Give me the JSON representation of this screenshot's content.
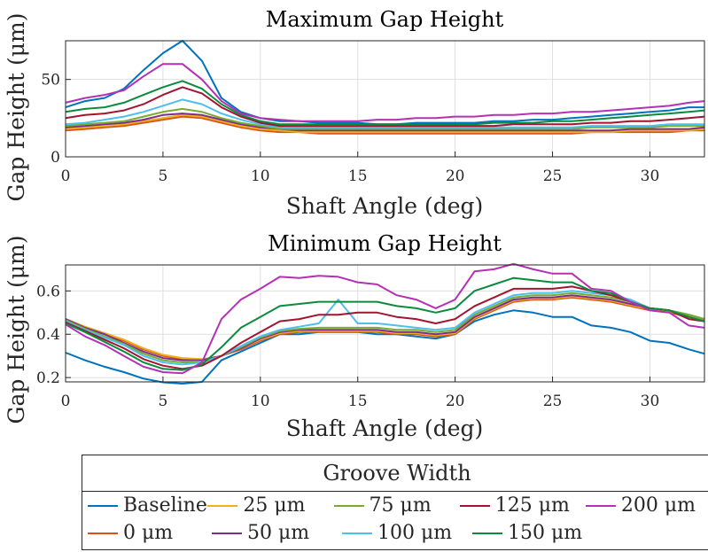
{
  "legend": {
    "title": "Groove Width",
    "rows": [
      [
        {
          "label": "Baseline",
          "color": "#0072BD"
        },
        {
          "label": "25 μm",
          "color": "#EDB120"
        },
        {
          "label": "75 μm",
          "color": "#77AC30"
        },
        {
          "label": "125 μm",
          "color": "#A2142F"
        },
        {
          "label": "200 μm",
          "color": "#B530B5"
        }
      ],
      [
        {
          "label": "0 μm",
          "color": "#D95319"
        },
        {
          "label": "50 μm",
          "color": "#7E2F8E"
        },
        {
          "label": "100 μm",
          "color": "#4DBEEE"
        },
        {
          "label": "150 μm",
          "color": "#0B8B3C"
        }
      ]
    ]
  },
  "chart_data": [
    {
      "type": "line",
      "title": "Maximum Gap Height",
      "xlabel": "Shaft Angle (deg)",
      "ylabel": "Gap Height (μm)",
      "xlim": [
        0,
        32.8
      ],
      "ylim": [
        0,
        75
      ],
      "xticks": [
        0,
        5,
        10,
        15,
        20,
        25,
        30
      ],
      "yticks": [
        0,
        50
      ],
      "grid": true,
      "x": [
        0,
        1,
        2,
        3,
        4,
        5,
        6,
        7,
        8,
        9,
        10,
        11,
        12,
        13,
        14,
        15,
        16,
        17,
        18,
        19,
        20,
        21,
        22,
        23,
        24,
        25,
        26,
        27,
        28,
        29,
        30,
        31,
        32,
        32.8
      ],
      "series": [
        {
          "name": "Baseline",
          "color": "#0072BD",
          "values": [
            32,
            36,
            38,
            44,
            56,
            67,
            75,
            62,
            38,
            29,
            25,
            23,
            23,
            22,
            22,
            22,
            21,
            21,
            22,
            22,
            22,
            22,
            23,
            23,
            24,
            24,
            25,
            26,
            27,
            28,
            29,
            30,
            32,
            32
          ]
        },
        {
          "name": "0 μm",
          "color": "#D95319",
          "values": [
            17,
            18,
            19,
            20,
            22,
            24,
            26,
            25,
            22,
            19,
            17,
            16,
            16,
            15,
            15,
            15,
            15,
            15,
            15,
            15,
            15,
            15,
            15,
            15,
            15,
            15,
            15,
            16,
            16,
            16,
            16,
            16,
            17,
            17
          ]
        },
        {
          "name": "25 μm",
          "color": "#EDB120",
          "values": [
            18,
            19,
            20,
            21,
            23,
            25,
            27,
            26,
            23,
            20,
            18,
            17,
            16,
            16,
            16,
            16,
            16,
            16,
            16,
            16,
            16,
            16,
            16,
            16,
            16,
            16,
            16,
            16,
            16,
            17,
            17,
            17,
            17,
            18
          ]
        },
        {
          "name": "50 μm",
          "color": "#7E2F8E",
          "values": [
            19,
            20,
            21,
            22,
            24,
            27,
            28,
            27,
            24,
            21,
            19,
            18,
            17,
            17,
            17,
            17,
            17,
            17,
            17,
            17,
            17,
            17,
            17,
            17,
            17,
            17,
            17,
            17,
            17,
            18,
            18,
            18,
            18,
            19
          ]
        },
        {
          "name": "75 μm",
          "color": "#77AC30",
          "values": [
            20,
            21,
            22,
            23,
            26,
            29,
            31,
            29,
            25,
            22,
            20,
            18,
            18,
            18,
            18,
            18,
            18,
            18,
            18,
            18,
            18,
            18,
            18,
            18,
            18,
            18,
            18,
            19,
            19,
            19,
            19,
            20,
            20,
            20
          ]
        },
        {
          "name": "100 μm",
          "color": "#4DBEEE",
          "values": [
            21,
            22,
            24,
            26,
            29,
            33,
            37,
            34,
            28,
            24,
            21,
            19,
            19,
            19,
            19,
            19,
            19,
            19,
            19,
            19,
            19,
            19,
            19,
            19,
            19,
            19,
            19,
            20,
            20,
            20,
            20,
            21,
            21,
            21
          ]
        },
        {
          "name": "125 μm",
          "color": "#A2142F",
          "values": [
            25,
            27,
            28,
            30,
            34,
            40,
            45,
            41,
            32,
            26,
            22,
            20,
            20,
            20,
            20,
            20,
            20,
            20,
            20,
            20,
            20,
            20,
            20,
            21,
            21,
            21,
            21,
            22,
            22,
            23,
            23,
            24,
            25,
            26
          ]
        },
        {
          "name": "150 μm",
          "color": "#0B8B3C",
          "values": [
            29,
            31,
            32,
            35,
            40,
            45,
            49,
            44,
            34,
            27,
            23,
            21,
            21,
            21,
            21,
            21,
            21,
            21,
            21,
            21,
            21,
            21,
            22,
            22,
            22,
            23,
            23,
            24,
            25,
            26,
            27,
            28,
            29,
            30
          ]
        },
        {
          "name": "200 μm",
          "color": "#B530B5",
          "values": [
            35,
            38,
            40,
            43,
            52,
            60,
            60,
            50,
            36,
            28,
            25,
            24,
            23,
            23,
            23,
            23,
            24,
            24,
            25,
            25,
            26,
            26,
            27,
            27,
            28,
            28,
            29,
            29,
            30,
            31,
            32,
            33,
            35,
            36
          ]
        }
      ]
    },
    {
      "type": "line",
      "title": "Minimum Gap Height",
      "xlabel": "Shaft Angle (deg)",
      "ylabel": "Gap Height (μm)",
      "xlim": [
        0,
        32.8
      ],
      "ylim": [
        0.18,
        0.72
      ],
      "xticks": [
        0,
        5,
        10,
        15,
        20,
        25,
        30
      ],
      "yticks": [
        0.2,
        0.4,
        0.6
      ],
      "ytick_labels": [
        "0.2",
        "0.4",
        "0.6"
      ],
      "grid": true,
      "x": [
        0,
        1,
        2,
        3,
        4,
        5,
        6,
        7,
        8,
        9,
        10,
        11,
        12,
        13,
        14,
        15,
        16,
        17,
        18,
        19,
        20,
        21,
        22,
        23,
        24,
        25,
        26,
        27,
        28,
        29,
        30,
        31,
        32,
        32.8
      ],
      "series": [
        {
          "name": "Baseline",
          "color": "#0072BD",
          "values": [
            0.315,
            0.28,
            0.25,
            0.225,
            0.195,
            0.178,
            0.172,
            0.18,
            0.28,
            0.32,
            0.36,
            0.4,
            0.4,
            0.41,
            0.41,
            0.41,
            0.4,
            0.4,
            0.39,
            0.38,
            0.4,
            0.46,
            0.49,
            0.51,
            0.5,
            0.48,
            0.48,
            0.44,
            0.43,
            0.41,
            0.37,
            0.36,
            0.33,
            0.31
          ]
        },
        {
          "name": "0 μm",
          "color": "#D95319",
          "values": [
            0.465,
            0.43,
            0.4,
            0.37,
            0.33,
            0.3,
            0.285,
            0.28,
            0.3,
            0.33,
            0.37,
            0.4,
            0.41,
            0.41,
            0.41,
            0.41,
            0.41,
            0.4,
            0.4,
            0.39,
            0.4,
            0.47,
            0.51,
            0.55,
            0.56,
            0.56,
            0.57,
            0.56,
            0.55,
            0.53,
            0.51,
            0.5,
            0.48,
            0.46
          ]
        },
        {
          "name": "25 μm",
          "color": "#EDB120",
          "values": [
            0.47,
            0.435,
            0.405,
            0.375,
            0.335,
            0.305,
            0.29,
            0.285,
            0.3,
            0.335,
            0.375,
            0.405,
            0.415,
            0.415,
            0.415,
            0.415,
            0.415,
            0.405,
            0.405,
            0.395,
            0.405,
            0.475,
            0.515,
            0.555,
            0.565,
            0.565,
            0.575,
            0.565,
            0.555,
            0.535,
            0.515,
            0.505,
            0.485,
            0.465
          ]
        },
        {
          "name": "50 μm",
          "color": "#7E2F8E",
          "values": [
            0.47,
            0.43,
            0.4,
            0.36,
            0.32,
            0.29,
            0.28,
            0.28,
            0.3,
            0.335,
            0.38,
            0.41,
            0.42,
            0.42,
            0.42,
            0.42,
            0.42,
            0.41,
            0.41,
            0.4,
            0.41,
            0.48,
            0.52,
            0.56,
            0.57,
            0.57,
            0.58,
            0.57,
            0.56,
            0.54,
            0.52,
            0.51,
            0.49,
            0.47
          ]
        },
        {
          "name": "75 μm",
          "color": "#77AC30",
          "values": [
            0.465,
            0.425,
            0.39,
            0.355,
            0.31,
            0.28,
            0.27,
            0.27,
            0.3,
            0.34,
            0.385,
            0.415,
            0.425,
            0.43,
            0.43,
            0.43,
            0.43,
            0.42,
            0.42,
            0.41,
            0.42,
            0.49,
            0.53,
            0.57,
            0.58,
            0.58,
            0.59,
            0.58,
            0.57,
            0.55,
            0.52,
            0.51,
            0.49,
            0.47
          ]
        },
        {
          "name": "100 μm",
          "color": "#4DBEEE",
          "values": [
            0.46,
            0.42,
            0.385,
            0.35,
            0.3,
            0.27,
            0.26,
            0.27,
            0.3,
            0.345,
            0.39,
            0.42,
            0.435,
            0.45,
            0.56,
            0.45,
            0.45,
            0.44,
            0.43,
            0.42,
            0.43,
            0.5,
            0.54,
            0.58,
            0.59,
            0.59,
            0.6,
            0.59,
            0.58,
            0.56,
            0.52,
            0.51,
            0.48,
            0.46
          ]
        },
        {
          "name": "125 μm",
          "color": "#A2142F",
          "values": [
            0.455,
            0.415,
            0.375,
            0.335,
            0.285,
            0.255,
            0.24,
            0.255,
            0.3,
            0.36,
            0.41,
            0.46,
            0.47,
            0.49,
            0.49,
            0.5,
            0.5,
            0.48,
            0.47,
            0.45,
            0.47,
            0.53,
            0.57,
            0.61,
            0.61,
            0.61,
            0.62,
            0.6,
            0.58,
            0.55,
            0.52,
            0.51,
            0.47,
            0.46
          ]
        },
        {
          "name": "150 μm",
          "color": "#0B8B3C",
          "values": [
            0.45,
            0.41,
            0.365,
            0.32,
            0.27,
            0.24,
            0.235,
            0.26,
            0.34,
            0.43,
            0.48,
            0.53,
            0.54,
            0.55,
            0.55,
            0.55,
            0.55,
            0.53,
            0.52,
            0.5,
            0.52,
            0.6,
            0.63,
            0.66,
            0.65,
            0.64,
            0.64,
            0.6,
            0.59,
            0.55,
            0.52,
            0.51,
            0.48,
            0.46
          ]
        },
        {
          "name": "200 μm",
          "color": "#B530B5",
          "values": [
            0.445,
            0.39,
            0.35,
            0.3,
            0.25,
            0.225,
            0.22,
            0.27,
            0.47,
            0.56,
            0.61,
            0.665,
            0.66,
            0.67,
            0.665,
            0.64,
            0.63,
            0.58,
            0.56,
            0.52,
            0.56,
            0.69,
            0.7,
            0.725,
            0.7,
            0.68,
            0.68,
            0.61,
            0.6,
            0.55,
            0.51,
            0.5,
            0.44,
            0.43
          ]
        }
      ]
    }
  ]
}
